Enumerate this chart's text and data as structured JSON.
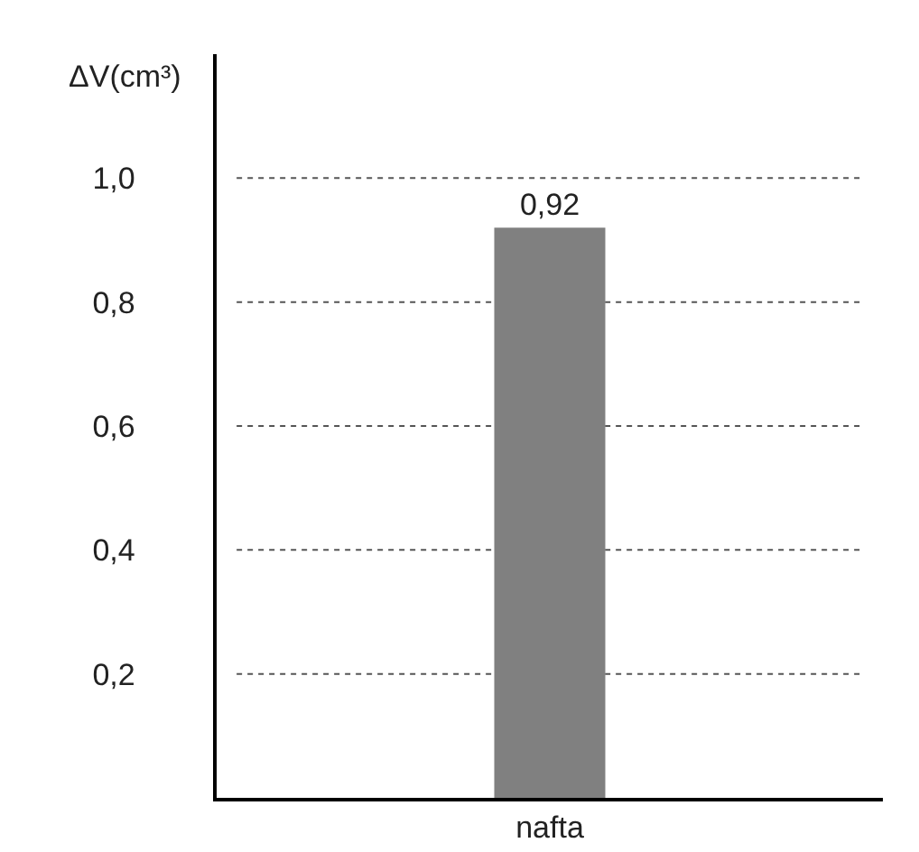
{
  "chart_data": {
    "type": "bar",
    "ylabel": "ΔV(cm³)",
    "categories": [
      "nafta"
    ],
    "values": [
      0.92
    ],
    "color": "#808080",
    "value_labels": [
      "0,92"
    ],
    "ylim": [
      0,
      1.2
    ],
    "yticks": [
      {
        "value": 0.2,
        "label": "0,2"
      },
      {
        "value": 0.4,
        "label": "0,4"
      },
      {
        "value": 0.6,
        "label": "0,6"
      },
      {
        "value": 0.8,
        "label": "0,8"
      },
      {
        "value": 1.0,
        "label": "1,0"
      }
    ],
    "grid": "y",
    "line_style": "dotted"
  }
}
